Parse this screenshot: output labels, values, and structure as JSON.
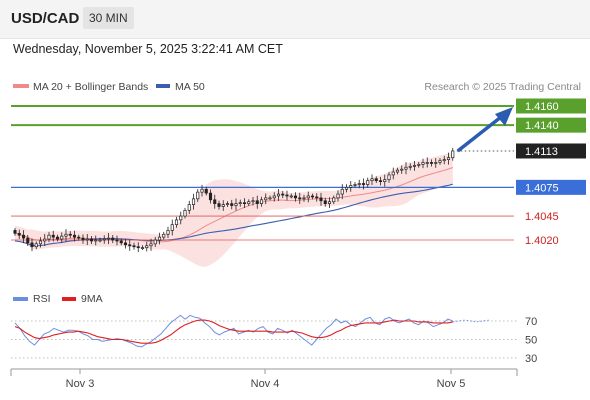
{
  "header": {
    "pair": "USD/CAD",
    "timeframe": "30 MIN"
  },
  "date_line": "Wednesday, November 5, 2025 3:22:41 AM CET",
  "legend": {
    "bb_label": "MA 20 + Bollinger Bands",
    "ma50_label": "MA 50"
  },
  "credit": "Research © 2025 Trading Central",
  "rsi_legend": {
    "rsi_label": "RSI",
    "ma_label": "9MA"
  },
  "colors": {
    "up_candle": "#ffffff",
    "down_candle": "#222222",
    "bb_fill": "#fbdcdc",
    "ma20": "#f08a8a",
    "ma50": "#3a5fb0",
    "resistance": "#5aa02c",
    "pivot": "#3a6fd8",
    "support": "#e05555",
    "arrow": "#2a5db0",
    "rsi": "#6b8fe0",
    "rsi_ma": "#e02020"
  },
  "chart_data": [
    {
      "type": "candlestick",
      "title": "",
      "xlabel": "",
      "ylabel": "",
      "x_tick_labels": [
        "Nov 3",
        "Nov 4",
        "Nov 5"
      ],
      "ylim": [
        1.3995,
        1.4175
      ],
      "current_price": 1.4113,
      "levels": [
        {
          "label": "1.4160",
          "value": 1.416,
          "kind": "resistance"
        },
        {
          "label": "1.4140",
          "value": 1.414,
          "kind": "resistance"
        },
        {
          "label": "1.4113",
          "value": 1.4113,
          "kind": "last"
        },
        {
          "label": "1.4075",
          "value": 1.4075,
          "kind": "pivot"
        },
        {
          "label": "1.4045",
          "value": 1.4045,
          "kind": "support"
        },
        {
          "label": "1.4020",
          "value": 1.402,
          "kind": "support"
        }
      ],
      "series": [
        {
          "name": "MA 20 + Bollinger Bands"
        },
        {
          "name": "MA 50"
        }
      ],
      "close": [
        1.4027,
        1.4025,
        1.4022,
        1.4017,
        1.4013,
        1.4016,
        1.4019,
        1.4021,
        1.4025,
        1.4023,
        1.4021,
        1.4024,
        1.4026,
        1.4025,
        1.4023,
        1.4022,
        1.402,
        1.4021,
        1.4019,
        1.402,
        1.402,
        1.4021,
        1.4022,
        1.402,
        1.4019,
        1.4017,
        1.4015,
        1.4014,
        1.4013,
        1.4012,
        1.4012,
        1.4014,
        1.4016,
        1.402,
        1.4023,
        1.4026,
        1.403,
        1.4036,
        1.4041,
        1.4045,
        1.4051,
        1.4057,
        1.4063,
        1.407,
        1.4073,
        1.4069,
        1.4062,
        1.4058,
        1.4055,
        1.4057,
        1.4058,
        1.4056,
        1.4058,
        1.4059,
        1.4058,
        1.406,
        1.4061,
        1.4058,
        1.4062,
        1.4064,
        1.4064,
        1.4066,
        1.4068,
        1.4067,
        1.4066,
        1.4066,
        1.4064,
        1.4063,
        1.4064,
        1.4066,
        1.4065,
        1.4064,
        1.4061,
        1.4058,
        1.406,
        1.4064,
        1.4068,
        1.4073,
        1.4075,
        1.4077,
        1.4078,
        1.4079,
        1.4078,
        1.4082,
        1.4084,
        1.4082,
        1.4081,
        1.4083,
        1.4088,
        1.4091,
        1.4093,
        1.4094,
        1.4096,
        1.4097,
        1.4098,
        1.4099,
        1.4101,
        1.4101,
        1.41,
        1.4101,
        1.4103,
        1.4104,
        1.4106,
        1.4113
      ],
      "rsi": {
        "levels": [
          70,
          50,
          30
        ],
        "rsi": [
          68,
          62,
          54,
          48,
          44,
          50,
          56,
          58,
          62,
          60,
          58,
          60,
          60,
          59,
          56,
          54,
          50,
          50,
          48,
          49,
          50,
          51,
          50,
          48,
          46,
          43,
          42,
          45,
          48,
          52,
          56,
          62,
          68,
          72,
          76,
          72,
          76,
          74,
          73,
          68,
          64,
          58,
          55,
          58,
          60,
          62,
          56,
          58,
          60,
          58,
          62,
          64,
          58,
          56,
          62,
          60,
          57,
          60,
          56,
          52,
          48,
          44,
          50,
          56,
          62,
          66,
          72,
          68,
          70,
          66,
          64,
          68,
          72,
          74,
          68,
          66,
          72,
          74,
          70,
          68,
          70,
          72,
          68,
          66,
          70,
          68,
          64,
          66,
          68,
          72,
          70
        ],
        "ma": [
          64,
          62,
          58,
          55,
          52,
          51,
          52,
          53,
          55,
          56,
          57,
          58,
          58,
          59,
          58,
          57,
          55,
          53,
          52,
          51,
          50,
          50,
          50,
          49,
          48,
          47,
          46,
          46,
          46,
          47,
          49,
          52,
          55,
          59,
          63,
          66,
          68,
          70,
          71,
          71,
          70,
          68,
          65,
          63,
          61,
          60,
          59,
          59,
          59,
          59,
          59,
          59,
          59,
          58,
          58,
          58,
          58,
          59,
          58,
          57,
          55,
          53,
          52,
          52,
          53,
          55,
          58,
          60,
          63,
          65,
          66,
          67,
          68,
          68,
          68,
          68,
          69,
          70,
          71,
          70,
          70,
          70,
          70,
          69,
          69,
          69,
          68,
          68,
          68,
          68,
          69
        ],
        "projection": [
          70,
          70,
          70,
          70
        ]
      }
    }
  ]
}
